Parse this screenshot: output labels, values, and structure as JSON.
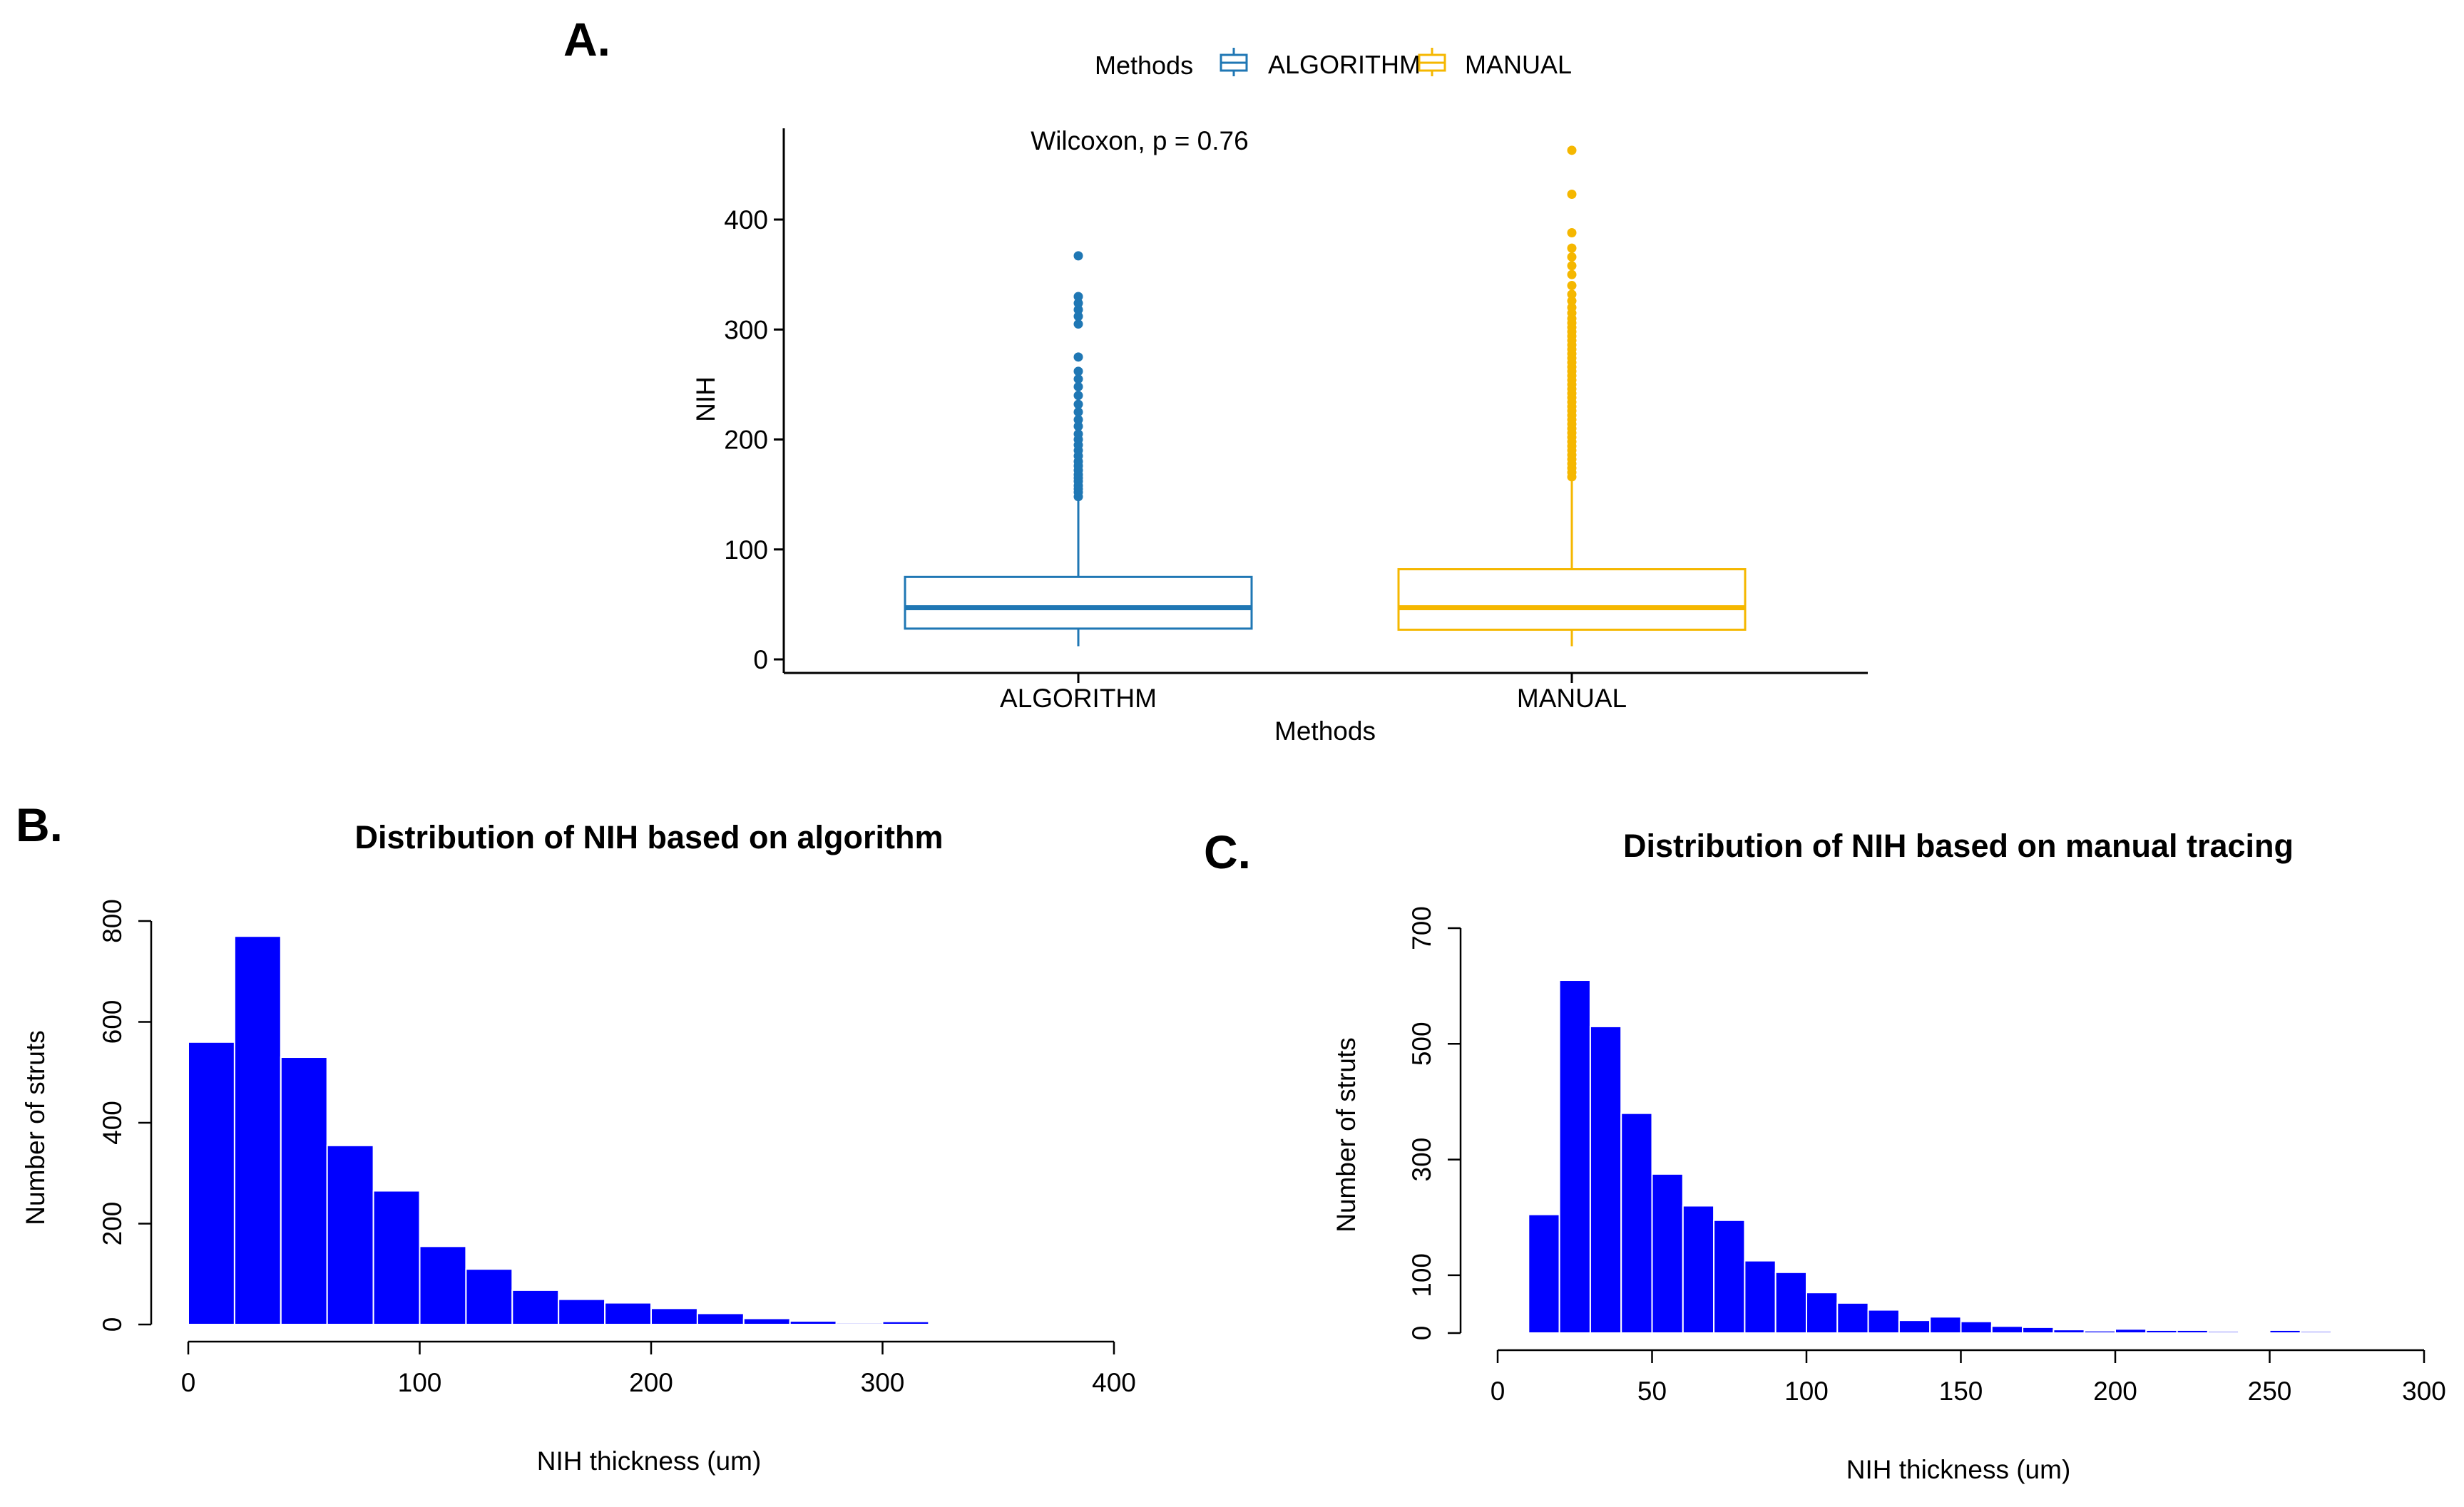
{
  "panels": {
    "a_label": "A.",
    "b_label": "B.",
    "c_label": "C."
  },
  "boxplot": {
    "legend_title": "Methods",
    "legend_items": [
      "ALGORITHM",
      "MANUAL"
    ],
    "annotation": "Wilcoxon, p = 0.76",
    "x_title": "Methods",
    "y_title": "NIH"
  },
  "hist_b": {
    "title": "Distribution of NIH based on algorithm",
    "x_title": "NIH thickness (um)",
    "y_title": "Number of struts"
  },
  "hist_c": {
    "title": "Distribution of NIH based on manual tracing",
    "x_title": "NIH thickness (um)",
    "y_title": "Number of struts"
  },
  "colors": {
    "algorithm": "#1f77b4",
    "manual": "#f5b700",
    "bars": "#0000ff"
  },
  "chart_data": [
    {
      "type": "box",
      "title": "",
      "xlabel": "Methods",
      "ylabel": "NIH",
      "ylim": [
        -10,
        475
      ],
      "yticks": [
        0,
        100,
        200,
        300,
        400
      ],
      "categories": [
        "ALGORITHM",
        "MANUAL"
      ],
      "series": [
        {
          "name": "ALGORITHM",
          "color": "#1f77b4",
          "whisker_low": 12,
          "q1": 28,
          "median": 47,
          "q3": 75,
          "whisker_high": 145,
          "outliers": [
            148,
            152,
            155,
            158,
            162,
            165,
            168,
            172,
            176,
            180,
            185,
            190,
            195,
            200,
            205,
            212,
            218,
            225,
            232,
            240,
            248,
            255,
            262,
            275,
            305,
            312,
            318,
            324,
            330,
            367
          ]
        },
        {
          "name": "MANUAL",
          "color": "#f5b700",
          "whisker_low": 12,
          "q1": 27,
          "median": 47,
          "q3": 82,
          "whisker_high": 163,
          "outliers": [
            166,
            170,
            174,
            178,
            182,
            186,
            190,
            194,
            198,
            202,
            206,
            210,
            214,
            218,
            222,
            226,
            230,
            234,
            238,
            242,
            246,
            250,
            254,
            258,
            262,
            266,
            270,
            274,
            278,
            282,
            286,
            290,
            294,
            298,
            302,
            306,
            310,
            315,
            320,
            326,
            332,
            340,
            350,
            358,
            366,
            374,
            388,
            423,
            463
          ]
        }
      ]
    },
    {
      "type": "bar",
      "title": "Distribution of NIH based on algorithm",
      "xlabel": "NIH thickness (um)",
      "ylabel": "Number of struts",
      "xlim": [
        0,
        400
      ],
      "ylim": [
        0,
        800
      ],
      "xticks": [
        0,
        100,
        200,
        300,
        400
      ],
      "yticks": [
        0,
        200,
        400,
        600,
        800
      ],
      "bin_start": 0,
      "bin_width": 20,
      "values": [
        560,
        770,
        530,
        355,
        265,
        155,
        110,
        68,
        50,
        43,
        32,
        22,
        12,
        7,
        3,
        6,
        2,
        0,
        1
      ]
    },
    {
      "type": "bar",
      "title": "Distribution of NIH based on manual tracing",
      "xlabel": "NIH thickness (um)",
      "ylabel": "Number of struts",
      "xlim": [
        0,
        300
      ],
      "ylim": [
        0,
        700
      ],
      "xticks": [
        0,
        50,
        100,
        150,
        200,
        250,
        300
      ],
      "yticks": [
        0,
        100,
        300,
        500,
        700
      ],
      "bin_start": 10,
      "bin_width": 10,
      "values": [
        205,
        610,
        530,
        380,
        275,
        220,
        195,
        125,
        105,
        70,
        52,
        40,
        22,
        28,
        20,
        12,
        10,
        6,
        4,
        7,
        5,
        5,
        3,
        2,
        5,
        3,
        1
      ]
    }
  ]
}
